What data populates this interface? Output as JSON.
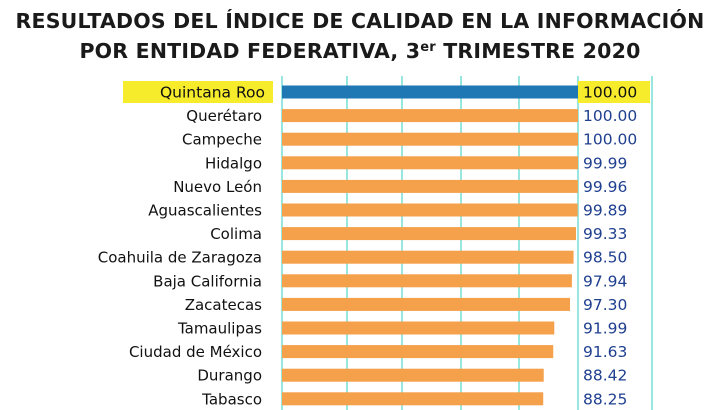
{
  "title": {
    "line1": "RESULTADOS DEL ÍNDICE DE CALIDAD EN LA INFORMACIÓN",
    "line2_prefix": "POR ENTIDAD FEDERATIVA, 3",
    "line2_sup": "er",
    "line2_suffix": " TRIMESTRE 2020"
  },
  "colors": {
    "bar": "#f5a04a",
    "highlight_bar": "#1f77b4",
    "highlight_label_bg": "#f7ec2c",
    "value_text": "#1f3f8f",
    "grid": "#7fe0d8"
  },
  "chart_data": {
    "type": "bar",
    "orientation": "horizontal",
    "highlight": "Quintana Roo",
    "categories": [
      "Quintana Roo",
      "Querétaro",
      "Campeche",
      "Hidalgo",
      "Nuevo León",
      "Aguascalientes",
      "Colima",
      "Coahuila de Zaragoza",
      "Baja California",
      "Zacatecas",
      "Tamaulipas",
      "Ciudad de México",
      "Durango",
      "Tabasco"
    ],
    "values": [
      100.0,
      100.0,
      100.0,
      99.99,
      99.96,
      99.89,
      99.33,
      98.5,
      97.94,
      97.3,
      91.99,
      91.63,
      88.42,
      88.25
    ],
    "labels": [
      "100.00",
      "100.00",
      "100.00",
      "99.99",
      "99.96",
      "99.89",
      "99.33",
      "98.50",
      "97.94",
      "97.30",
      "91.99",
      "91.63",
      "88.42",
      "88.25"
    ],
    "xlim": [
      0,
      100
    ],
    "grid": true
  }
}
